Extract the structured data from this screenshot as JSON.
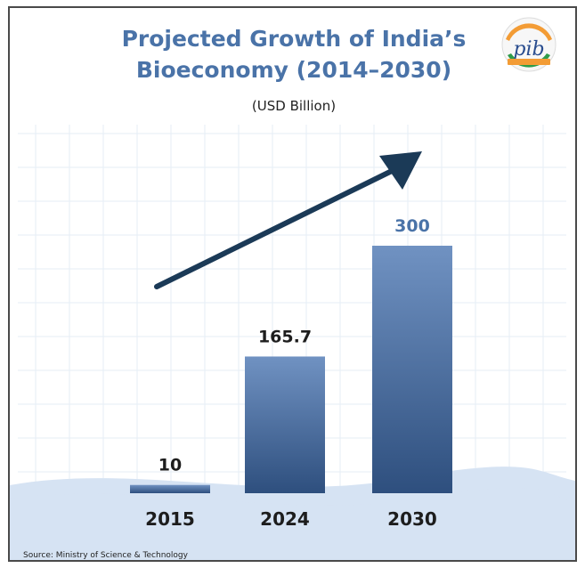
{
  "chart_data": {
    "type": "bar",
    "title": "Projected Growth of India's Bioeconomy (2014-2030)",
    "title_lines": [
      "Projected Growth of India’s",
      "Bioeconomy (2014–2030)"
    ],
    "subtitle": "(USD Billion)",
    "categories": [
      "2015",
      "2024",
      "2030"
    ],
    "values": [
      10,
      165.7,
      300
    ],
    "value_labels": [
      "10",
      "165.7",
      "300"
    ],
    "ylim": [
      0,
      300
    ],
    "grid": true,
    "legend": "none",
    "annotation": "upward trend arrow",
    "source": "Source: Ministry of Science & Technology"
  },
  "logo": {
    "name": "pib-logo",
    "text": "pib"
  },
  "colors": {
    "title": "#4a73a8",
    "bar_top": "#7092c2",
    "bar_bottom": "#2e4f7e",
    "arrow": "#1b3a57",
    "label_dark": "#1d1d1d",
    "label_highlight": "#4a73a8",
    "wave": "#d6e3f3",
    "grid": "#e6edf6"
  }
}
